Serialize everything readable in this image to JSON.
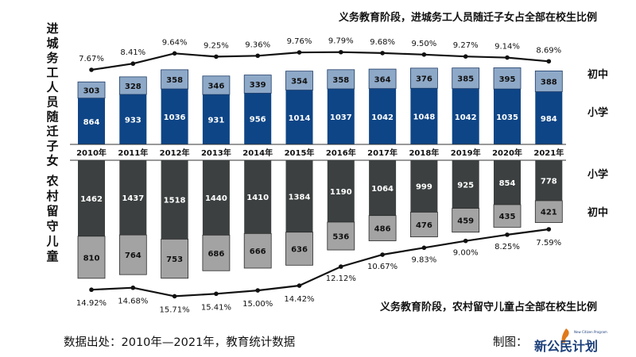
{
  "chart_data": {
    "type": "bar",
    "categories": [
      "2010年",
      "2011年",
      "2012年",
      "2013年",
      "2014年",
      "2015年",
      "2016年",
      "2017年",
      "2018年",
      "2019年",
      "2020年",
      "2021年"
    ],
    "panels": [
      {
        "group_label": "进城务工人员随迁子女",
        "title": "义务教育阶段，进城务工人员随迁子女占全部在校生比例",
        "series": [
          {
            "name": "小学",
            "color": "#0e4586",
            "values": [
              864,
              933,
              1036,
              931,
              956,
              1014,
              1037,
              1042,
              1048,
              1042,
              1035,
              984
            ]
          },
          {
            "name": "初中",
            "color": "#8ea9c8",
            "values": [
              303,
              328,
              358,
              346,
              339,
              354,
              358,
              364,
              376,
              385,
              395,
              388
            ]
          }
        ],
        "ratio": [
          "7.67%",
          "8.41%",
          "9.64%",
          "9.25%",
          "9.36%",
          "9.76%",
          "9.79%",
          "9.68%",
          "9.50%",
          "9.27%",
          "9.14%",
          "8.69%"
        ]
      },
      {
        "group_label": "农村留守儿童",
        "title": "义务教育阶段，农村留守儿童占全部在校生比例",
        "series": [
          {
            "name": "小学",
            "color": "#3c4040",
            "values": [
              1462,
              1437,
              1518,
              1440,
              1410,
              1384,
              1190,
              1064,
              999,
              925,
              854,
              778
            ]
          },
          {
            "name": "初中",
            "color": "#a3a3a3",
            "values": [
              810,
              764,
              753,
              686,
              666,
              636,
              536,
              486,
              476,
              459,
              435,
              421
            ]
          }
        ],
        "ratio": [
          "14.92%",
          "14.68%",
          "15.71%",
          "15.41%",
          "15.00%",
          "14.42%",
          "12.12%",
          "10.67%",
          "9.83%",
          "9.00%",
          "8.25%",
          "7.59%"
        ]
      }
    ]
  },
  "footer": {
    "source": "数据出处：2010年—2021年，教育统计数据",
    "maker": "制图：",
    "logo_text": "新公民计划",
    "logo_sub": "New Citizen Program"
  }
}
